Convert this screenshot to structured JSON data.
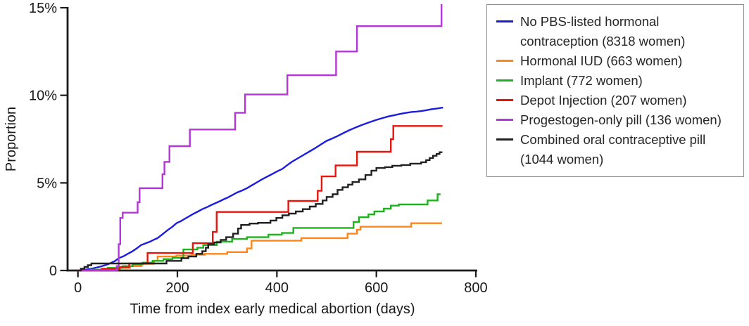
{
  "figure": {
    "y_axis": {
      "label": "Proportion",
      "tick_labels": [
        "0",
        "5%",
        "10%",
        "15%"
      ],
      "tick_values": [
        0,
        5,
        10,
        15
      ]
    },
    "x_axis": {
      "label": "Time from index early medical abortion (days)",
      "tick_labels": [
        "0",
        "200",
        "400",
        "600",
        "800"
      ],
      "tick_values": [
        0,
        200,
        400,
        600,
        800
      ]
    }
  },
  "legend": {
    "entries": [
      {
        "id": "no-pbs",
        "color": "#1c1ce0",
        "lines": [
          "No PBS-listed hormonal",
          "contraception (8318 women)"
        ]
      },
      {
        "id": "hormonal-iud",
        "color": "#ff8519",
        "lines": [
          "Hormonal IUD (663 women)"
        ]
      },
      {
        "id": "implant",
        "color": "#1db21d",
        "lines": [
          "Implant (772 women)"
        ]
      },
      {
        "id": "depot",
        "color": "#e8150c",
        "lines": [
          "Depot Injection (207 women)"
        ]
      },
      {
        "id": "pop",
        "color": "#b435d8",
        "lines": [
          "Progestogen-only pill (136 women)"
        ]
      },
      {
        "id": "cocp",
        "color": "#202020",
        "lines": [
          "Combined oral contraceptive pill",
          "(1044 women)"
        ]
      }
    ]
  },
  "chart_data": {
    "type": "line",
    "title": "",
    "xlabel": "Time from index early medical abortion (days)",
    "ylabel": "Proportion",
    "xlim": [
      0,
      800
    ],
    "ylim": [
      0,
      15
    ],
    "y_unit": "%",
    "grid": false,
    "legend_position": "outside-right",
    "series": [
      {
        "id": "no-pbs",
        "name": "No PBS-listed hormonal contraception (8318 women)",
        "color": "#1c1ce0",
        "mode": "line",
        "points": [
          [
            0,
            0
          ],
          [
            15,
            0.05
          ],
          [
            30,
            0.12
          ],
          [
            45,
            0.22
          ],
          [
            60,
            0.35
          ],
          [
            75,
            0.55
          ],
          [
            82,
            0.7
          ],
          [
            92,
            0.82
          ],
          [
            100,
            0.95
          ],
          [
            108,
            1.07
          ],
          [
            115,
            1.2
          ],
          [
            121,
            1.32
          ],
          [
            127,
            1.45
          ],
          [
            136,
            1.55
          ],
          [
            145,
            1.65
          ],
          [
            152,
            1.75
          ],
          [
            160,
            1.85
          ],
          [
            170,
            2.07
          ],
          [
            180,
            2.3
          ],
          [
            190,
            2.5
          ],
          [
            198,
            2.7
          ],
          [
            207,
            2.82
          ],
          [
            215,
            2.95
          ],
          [
            222,
            3.07
          ],
          [
            230,
            3.2
          ],
          [
            240,
            3.35
          ],
          [
            250,
            3.5
          ],
          [
            260,
            3.62
          ],
          [
            269,
            3.75
          ],
          [
            277,
            3.85
          ],
          [
            285,
            3.95
          ],
          [
            292,
            4.05
          ],
          [
            300,
            4.15
          ],
          [
            310,
            4.3
          ],
          [
            320,
            4.45
          ],
          [
            330,
            4.57
          ],
          [
            340,
            4.7
          ],
          [
            347,
            4.82
          ],
          [
            355,
            4.95
          ],
          [
            362,
            5.07
          ],
          [
            370,
            5.2
          ],
          [
            380,
            5.35
          ],
          [
            390,
            5.5
          ],
          [
            400,
            5.65
          ],
          [
            411,
            5.8
          ],
          [
            420,
            6.0
          ],
          [
            430,
            6.2
          ],
          [
            442,
            6.4
          ],
          [
            454,
            6.6
          ],
          [
            464,
            6.77
          ],
          [
            475,
            6.95
          ],
          [
            487,
            7.17
          ],
          [
            500,
            7.4
          ],
          [
            510,
            7.52
          ],
          [
            520,
            7.65
          ],
          [
            532,
            7.82
          ],
          [
            545,
            8.0
          ],
          [
            557,
            8.15
          ],
          [
            570,
            8.3
          ],
          [
            585,
            8.45
          ],
          [
            600,
            8.6
          ],
          [
            612,
            8.7
          ],
          [
            625,
            8.8
          ],
          [
            637,
            8.87
          ],
          [
            650,
            8.95
          ],
          [
            660,
            9.0
          ],
          [
            670,
            9.05
          ],
          [
            680,
            9.07
          ],
          [
            690,
            9.1
          ],
          [
            700,
            9.15
          ],
          [
            710,
            9.2
          ],
          [
            722,
            9.25
          ],
          [
            734,
            9.3
          ]
        ]
      },
      {
        "id": "hormonal-iud",
        "name": "Hormonal IUD (663 women)",
        "color": "#ff8519",
        "mode": "step",
        "points": [
          [
            0,
            0
          ],
          [
            40,
            0.05
          ],
          [
            80,
            0.15
          ],
          [
            105,
            0.25
          ],
          [
            128,
            0.38
          ],
          [
            153,
            0.55
          ],
          [
            160,
            0.8
          ],
          [
            198,
            0.85
          ],
          [
            228,
            0.9
          ],
          [
            255,
            0.95
          ],
          [
            300,
            1.05
          ],
          [
            340,
            1.26
          ],
          [
            349,
            1.7
          ],
          [
            449,
            1.85
          ],
          [
            542,
            2.1
          ],
          [
            561,
            2.33
          ],
          [
            568,
            2.5
          ],
          [
            670,
            2.7
          ],
          [
            732,
            2.7
          ]
        ]
      },
      {
        "id": "implant",
        "name": "Implant (772 women)",
        "color": "#1db21d",
        "mode": "step",
        "points": [
          [
            0,
            0
          ],
          [
            25,
            0.05
          ],
          [
            60,
            0.15
          ],
          [
            90,
            0.25
          ],
          [
            110,
            0.35
          ],
          [
            130,
            0.45
          ],
          [
            150,
            0.55
          ],
          [
            172,
            0.65
          ],
          [
            190,
            0.72
          ],
          [
            212,
            1.2
          ],
          [
            240,
            1.3
          ],
          [
            252,
            1.45
          ],
          [
            279,
            1.65
          ],
          [
            310,
            1.8
          ],
          [
            340,
            1.9
          ],
          [
            383,
            2.05
          ],
          [
            410,
            2.14
          ],
          [
            433,
            2.43
          ],
          [
            554,
            2.77
          ],
          [
            565,
            3.04
          ],
          [
            584,
            3.2
          ],
          [
            596,
            3.37
          ],
          [
            615,
            3.53
          ],
          [
            629,
            3.7
          ],
          [
            645,
            3.77
          ],
          [
            703,
            4.0
          ],
          [
            723,
            4.35
          ],
          [
            729,
            4.35
          ]
        ]
      },
      {
        "id": "depot",
        "name": "Depot Injection (207 women)",
        "color": "#e8150c",
        "mode": "step",
        "points": [
          [
            0,
            0
          ],
          [
            48,
            0.1
          ],
          [
            84,
            0.2
          ],
          [
            103,
            0.4
          ],
          [
            140,
            1.0
          ],
          [
            231,
            1.56
          ],
          [
            271,
            2.2
          ],
          [
            279,
            3.34
          ],
          [
            423,
            3.97
          ],
          [
            482,
            4.55
          ],
          [
            490,
            5.37
          ],
          [
            518,
            6.0
          ],
          [
            561,
            6.78
          ],
          [
            629,
            7.5
          ],
          [
            634,
            8.25
          ],
          [
            733,
            8.25
          ]
        ]
      },
      {
        "id": "pop",
        "name": "Progestogen-only pill (136 women)",
        "color": "#b435d8",
        "mode": "step",
        "points": [
          [
            0,
            0
          ],
          [
            78,
            0.25
          ],
          [
            82,
            1.5
          ],
          [
            85,
            3.0
          ],
          [
            90,
            3.3
          ],
          [
            120,
            3.9
          ],
          [
            124,
            4.7
          ],
          [
            170,
            5.5
          ],
          [
            174,
            6.2
          ],
          [
            184,
            7.1
          ],
          [
            225,
            8.05
          ],
          [
            316,
            9.0
          ],
          [
            336,
            10.05
          ],
          [
            421,
            11.15
          ],
          [
            519,
            12.5
          ],
          [
            561,
            13.95
          ],
          [
            731,
            15.2
          ]
        ]
      },
      {
        "id": "cocp",
        "name": "Combined oral contraceptive pill (1044 women)",
        "color": "#202020",
        "mode": "step",
        "points": [
          [
            0,
            0
          ],
          [
            6,
            0.1
          ],
          [
            13,
            0.2
          ],
          [
            20,
            0.3
          ],
          [
            27,
            0.4
          ],
          [
            178,
            0.55
          ],
          [
            208,
            0.7
          ],
          [
            222,
            0.8
          ],
          [
            238,
            0.95
          ],
          [
            250,
            1.1
          ],
          [
            257,
            1.3
          ],
          [
            262,
            1.5
          ],
          [
            274,
            1.6
          ],
          [
            287,
            1.75
          ],
          [
            298,
            1.9
          ],
          [
            312,
            2.1
          ],
          [
            322,
            2.4
          ],
          [
            328,
            2.6
          ],
          [
            345,
            2.68
          ],
          [
            362,
            2.72
          ],
          [
            387,
            2.85
          ],
          [
            399,
            3.0
          ],
          [
            411,
            3.15
          ],
          [
            424,
            3.25
          ],
          [
            438,
            3.37
          ],
          [
            452,
            3.5
          ],
          [
            466,
            3.65
          ],
          [
            478,
            3.8
          ],
          [
            492,
            4.0
          ],
          [
            500,
            4.2
          ],
          [
            512,
            4.35
          ],
          [
            522,
            4.6
          ],
          [
            532,
            4.75
          ],
          [
            543,
            4.9
          ],
          [
            552,
            5.05
          ],
          [
            565,
            5.2
          ],
          [
            578,
            5.45
          ],
          [
            590,
            5.7
          ],
          [
            600,
            5.85
          ],
          [
            617,
            5.9
          ],
          [
            632,
            5.98
          ],
          [
            650,
            6.02
          ],
          [
            668,
            6.1
          ],
          [
            690,
            6.18
          ],
          [
            700,
            6.3
          ],
          [
            707,
            6.42
          ],
          [
            714,
            6.55
          ],
          [
            721,
            6.65
          ],
          [
            727,
            6.75
          ],
          [
            731,
            6.8
          ]
        ]
      }
    ]
  }
}
